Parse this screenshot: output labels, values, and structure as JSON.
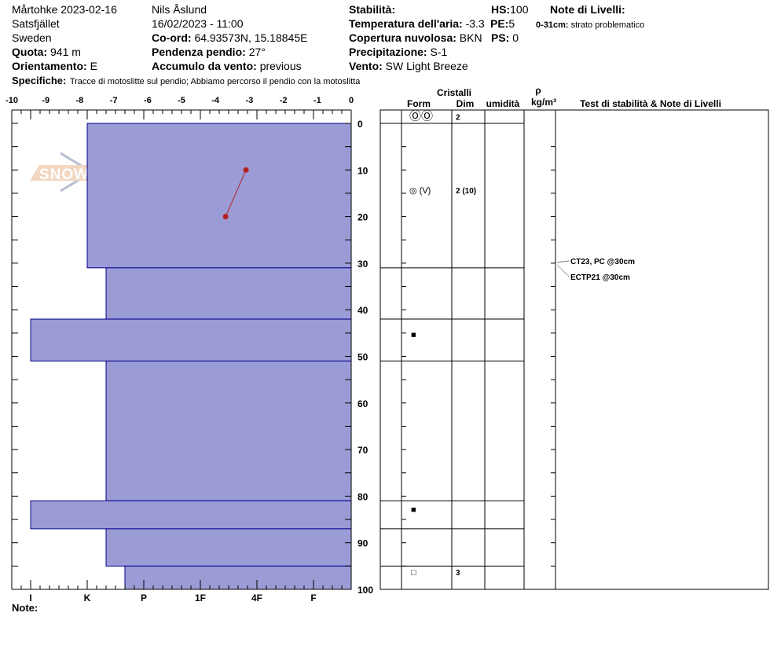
{
  "header": {
    "col1": [
      "Mårtohke 2023-02-16",
      "Satsfjället",
      "Sweden"
    ],
    "quota": {
      "label": "Quota:",
      "value": "941 m"
    },
    "orientamento": {
      "label": "Orientamento:",
      "value": "E"
    },
    "observer": "Nils Åslund",
    "datetime": "16/02/2023 - 11:00",
    "coord": {
      "label": "Co-ord:",
      "value": "64.93573N, 15.18845E"
    },
    "pendenza": {
      "label": "Pendenza pendio:",
      "value": "27°"
    },
    "accumulo": {
      "label": "Accumulo da vento:",
      "value": "previous"
    },
    "stabilita": {
      "label": "Stabilità:",
      "value": ""
    },
    "temperatura": {
      "label": "Temperatura dell'aria:",
      "value": "-3.3"
    },
    "copertura": {
      "label": "Copertura nuvolosa:",
      "value": "BKN"
    },
    "precipitazione": {
      "label": "Precipitazione:",
      "value": "S-1"
    },
    "vento": {
      "label": "Vento:",
      "value": "SW Light Breeze"
    },
    "hs": {
      "label": "HS:",
      "value": "100"
    },
    "pe": {
      "label": "PE:",
      "value": "5"
    },
    "ps": {
      "label": "PS: ",
      "value": "0"
    },
    "note_livelli": {
      "label": "Note di Livelli:",
      "range": "0-31cm:",
      "text": "strato problematico"
    },
    "specifiche": {
      "label": "Specifiche:",
      "value": "Tracce di motoslitte sul pendio; Abbiamo percorso il pendio con la motoslitta"
    }
  },
  "table_headers": {
    "cristalli": "Cristalli",
    "form": "Form",
    "dim": "Dim",
    "umidita": "umidità",
    "rho": "ρ",
    "density_unit": "kg/m³",
    "tests": "Test di stabilità & Note di Livelli"
  },
  "footer": {
    "note_label": "Note:"
  },
  "logo_text": "SNOW PILOT",
  "colors": {
    "layer_fill": "#9b9bd6",
    "layer_stroke": "#00008b",
    "temp_line": "#b22222"
  },
  "chart_data": {
    "type": "bar",
    "orientation": "horizontal",
    "temperature_axis": {
      "ticks": [
        "-10",
        "-9",
        "-8",
        "-7",
        "-6",
        "-5",
        "-4",
        "-3",
        "-2",
        "-1",
        "0"
      ],
      "range": [
        -10,
        0
      ]
    },
    "hardness_axis": {
      "ticks": [
        "I",
        "K",
        "P",
        "1F",
        "4F",
        "F"
      ]
    },
    "depth_axis": {
      "ticks": [
        "0",
        "10",
        "20",
        "30",
        "40",
        "50",
        "60",
        "70",
        "80",
        "90",
        "100"
      ],
      "range": [
        0,
        100
      ]
    },
    "layers": [
      {
        "top": 0,
        "bottom": 31,
        "hardness": "K",
        "form": "◎ (V)",
        "size": "2 (10)"
      },
      {
        "top": 31,
        "bottom": 42,
        "hardness": "K+",
        "form": "",
        "size": ""
      },
      {
        "top": 42,
        "bottom": 51,
        "hardness": "I",
        "form": "■",
        "size": ""
      },
      {
        "top": 51,
        "bottom": 81,
        "hardness": "K+",
        "form": "",
        "size": ""
      },
      {
        "top": 81,
        "bottom": 87,
        "hardness": "I",
        "form": "■",
        "size": ""
      },
      {
        "top": 87,
        "bottom": 95,
        "hardness": "K+",
        "form": "",
        "size": ""
      },
      {
        "top": 95,
        "bottom": 100,
        "hardness": "P-",
        "form": "□",
        "size": "3"
      }
    ],
    "surface_row": {
      "form": "ⓄⓄ",
      "size": "2"
    },
    "temperature_profile": [
      {
        "depth": 10,
        "temp": -3.1
      },
      {
        "depth": 20,
        "temp": -3.7
      }
    ],
    "tests": [
      {
        "depth": 30,
        "text": "CT23, PC @30cm"
      },
      {
        "depth": 30,
        "text": "ECTP21 @30cm"
      }
    ]
  }
}
